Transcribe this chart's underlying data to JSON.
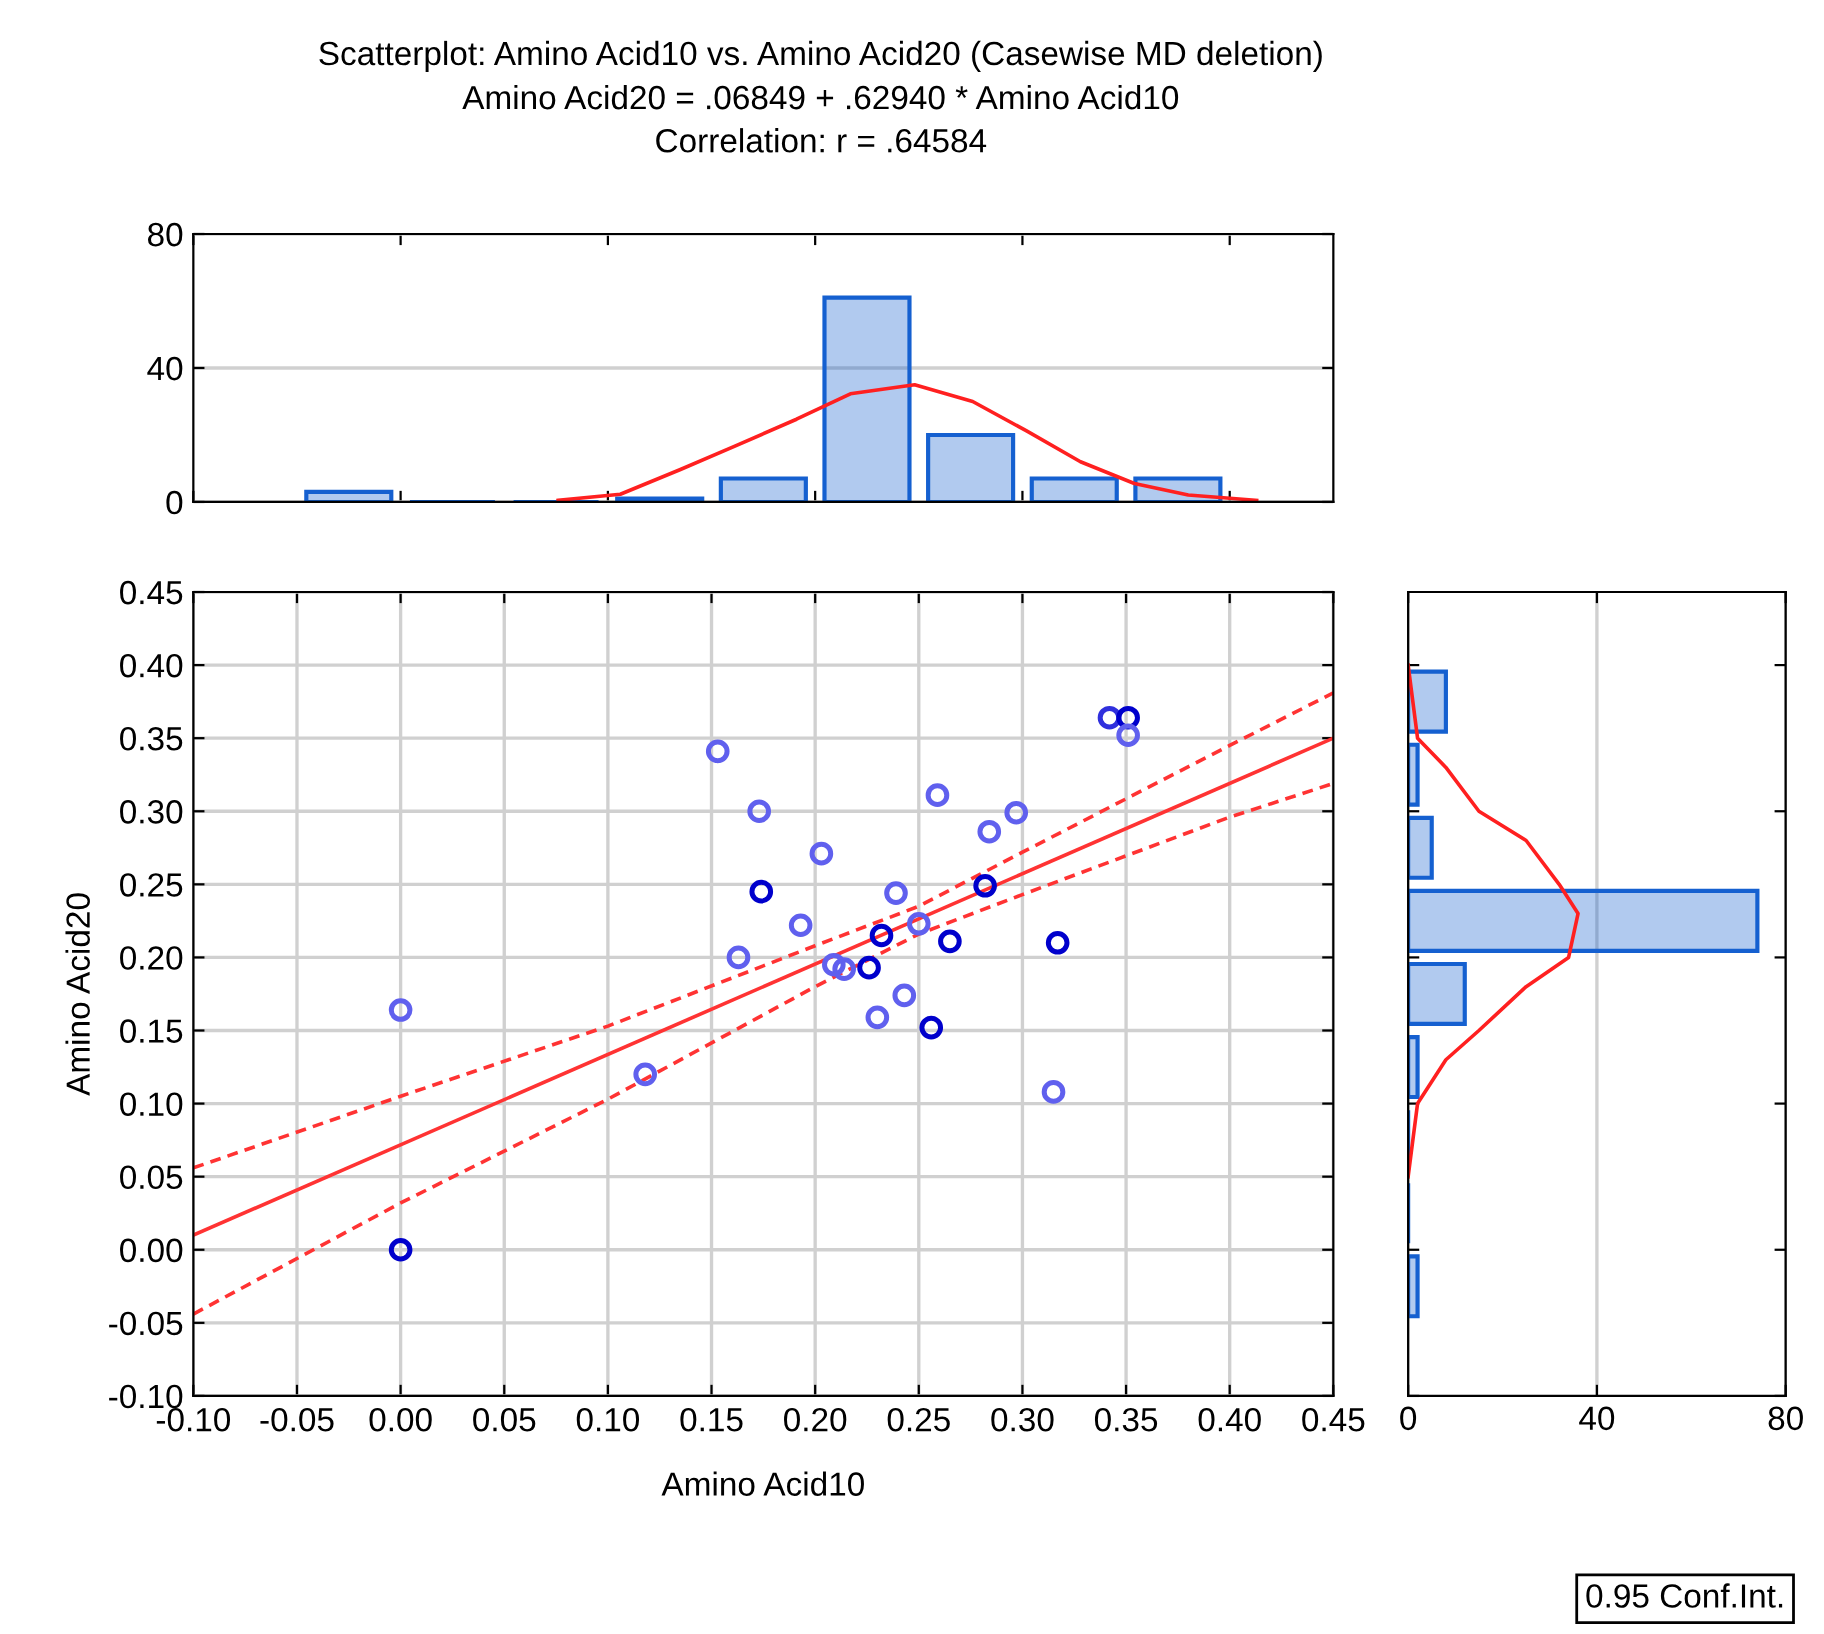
{
  "chart_data": [
    {
      "type": "histogram",
      "title": "Scatterplot: Amino Acid10 vs. Amino Acid20 (Casewise MD deletion)",
      "subtitle": "Amino Acid20 = .06849 + .62940 * Amino Acid10\nCorrelation: r = .64584",
      "bins": [
        -0.05,
        0.0,
        0.05,
        0.1,
        0.15,
        0.2,
        0.25,
        0.3,
        0.35,
        0.4
      ],
      "values": [
        3,
        0,
        0,
        1,
        7,
        61,
        20,
        7,
        7
      ],
      "color": "#1560d0",
      "xlim": [
        -0.1,
        0.45
      ],
      "ylim": [
        0,
        80
      ],
      "yticks": [
        0,
        40,
        80
      ],
      "grid": "y",
      "tick_labels": "y",
      "series": [
        {
          "type": "line",
          "color": "#ff2020",
          "x": [
            0.076,
            0.106,
            0.135,
            0.161,
            0.191,
            0.217,
            0.248,
            0.276,
            0.302,
            0.328,
            0.354,
            0.38,
            0.413
          ],
          "values": [
            0.5,
            2.3,
            9.7,
            16.6,
            24.7,
            32.3,
            35.0,
            30.0,
            21.2,
            12.0,
            5.5,
            2.1,
            0.5
          ]
        }
      ]
    },
    {
      "type": "scatter",
      "xlabel": "Amino Acid10",
      "ylabel": "Amino Acid20",
      "grid": true,
      "xlim": [
        -0.1,
        0.45
      ],
      "ylim": [
        -0.1,
        0.45
      ],
      "xticks": [
        {
          "value": -0.1,
          "label": "-0.10"
        },
        {
          "value": -0.05,
          "label": "-0.05"
        },
        {
          "value": 0.0,
          "label": "0.00"
        },
        {
          "value": 0.05,
          "label": "0.05"
        },
        {
          "value": 0.1,
          "label": "0.10"
        },
        {
          "value": 0.15,
          "label": "0.15"
        },
        {
          "value": 0.2,
          "label": "0.20"
        },
        {
          "value": 0.25,
          "label": "0.25"
        },
        {
          "value": 0.3,
          "label": "0.30"
        },
        {
          "value": 0.35,
          "label": "0.35"
        },
        {
          "value": 0.4,
          "label": "0.40"
        },
        {
          "value": 0.45,
          "label": "0.45"
        }
      ],
      "yticks": [
        {
          "value": -0.1,
          "label": "-0.10"
        },
        {
          "value": -0.05,
          "label": "-0.05"
        },
        {
          "value": 0.0,
          "label": "0.00"
        },
        {
          "value": 0.05,
          "label": "0.05"
        },
        {
          "value": 0.1,
          "label": "0.10"
        },
        {
          "value": 0.15,
          "label": "0.15"
        },
        {
          "value": 0.2,
          "label": "0.20"
        },
        {
          "value": 0.25,
          "label": "0.25"
        },
        {
          "value": 0.3,
          "label": "0.30"
        },
        {
          "value": 0.35,
          "label": "0.35"
        },
        {
          "value": 0.4,
          "label": "0.40"
        },
        {
          "value": 0.45,
          "label": "0.45"
        }
      ],
      "annotations": [
        "0.95 Conf.Int."
      ],
      "series": [
        {
          "type": "scatter",
          "marker": "circle",
          "x": [
            0.0,
            0.0,
            0.118,
            0.153,
            0.173,
            0.174,
            0.163,
            0.193,
            0.203,
            0.209,
            0.214,
            0.226,
            0.23,
            0.232,
            0.239,
            0.243,
            0.25,
            0.256,
            0.259,
            0.265,
            0.282,
            0.284,
            0.297,
            0.317,
            0.315,
            0.342,
            0.351,
            0.351
          ],
          "values": [
            0.164,
            0.0,
            0.12,
            0.341,
            0.3,
            0.245,
            0.2,
            0.222,
            0.271,
            0.195,
            0.192,
            0.193,
            0.159,
            0.215,
            0.244,
            0.174,
            0.223,
            0.152,
            0.311,
            0.211,
            0.249,
            0.286,
            0.299,
            0.21,
            0.108,
            0.364,
            0.364,
            0.352
          ],
          "colors": [
            "#6060ee",
            "#0000cc",
            "#6060ee",
            "#6060ee",
            "#6060ee",
            "#0000cc",
            "#6060ee",
            "#6060ee",
            "#6060ee",
            "#6060ee",
            "#6060ee",
            "#0000cc",
            "#6060ee",
            "#0000cc",
            "#6060ee",
            "#6060ee",
            "#6060ee",
            "#0000cc",
            "#6060ee",
            "#0000cc",
            "#0000cc",
            "#6060ee",
            "#6060ee",
            "#0000cc",
            "#6060ee",
            "#3030dd",
            "#0000cc",
            "#6060ee"
          ]
        },
        {
          "type": "line",
          "line_style": "solid",
          "color": "#ff3333",
          "x": [
            -0.1,
            0.45
          ],
          "values": [
            0.01,
            0.35
          ]
        },
        {
          "type": "line",
          "line_style": "dashed",
          "color": "#ff3333",
          "x": [
            -0.1,
            0.0,
            0.1,
            0.2,
            0.25,
            0.3,
            0.4,
            0.45
          ],
          "values": [
            0.056,
            0.105,
            0.153,
            0.208,
            0.235,
            0.272,
            0.345,
            0.381
          ]
        },
        {
          "type": "line",
          "line_style": "dashed",
          "color": "#ff3333",
          "x": [
            -0.1,
            0.0,
            0.1,
            0.2,
            0.25,
            0.3,
            0.4,
            0.45
          ],
          "values": [
            -0.044,
            0.032,
            0.103,
            0.18,
            0.216,
            0.243,
            0.296,
            0.319
          ]
        }
      ]
    },
    {
      "type": "histogram",
      "orientation": "horizontal",
      "bins": [
        -0.05,
        0.0,
        0.05,
        0.1,
        0.15,
        0.2,
        0.25,
        0.3,
        0.35,
        0.4
      ],
      "values": [
        2,
        0,
        0,
        2,
        12,
        74,
        5,
        2,
        8
      ],
      "color": "#1560d0",
      "xlim": [
        0,
        80
      ],
      "xticks": [
        0,
        40,
        80
      ],
      "ylim": [
        -0.1,
        0.45
      ],
      "grid": "x",
      "tick_labels": "x",
      "series": [
        {
          "type": "line",
          "color": "#ff2020",
          "x": [
            0.4,
            0.35,
            0.33,
            0.3,
            0.28,
            0.25,
            0.23,
            0.2,
            0.18,
            0.15,
            0.13,
            0.1,
            0.05
          ],
          "values": [
            0,
            2,
            8,
            15,
            25,
            32,
            36,
            34,
            25,
            15,
            8,
            2,
            0
          ]
        }
      ]
    }
  ]
}
